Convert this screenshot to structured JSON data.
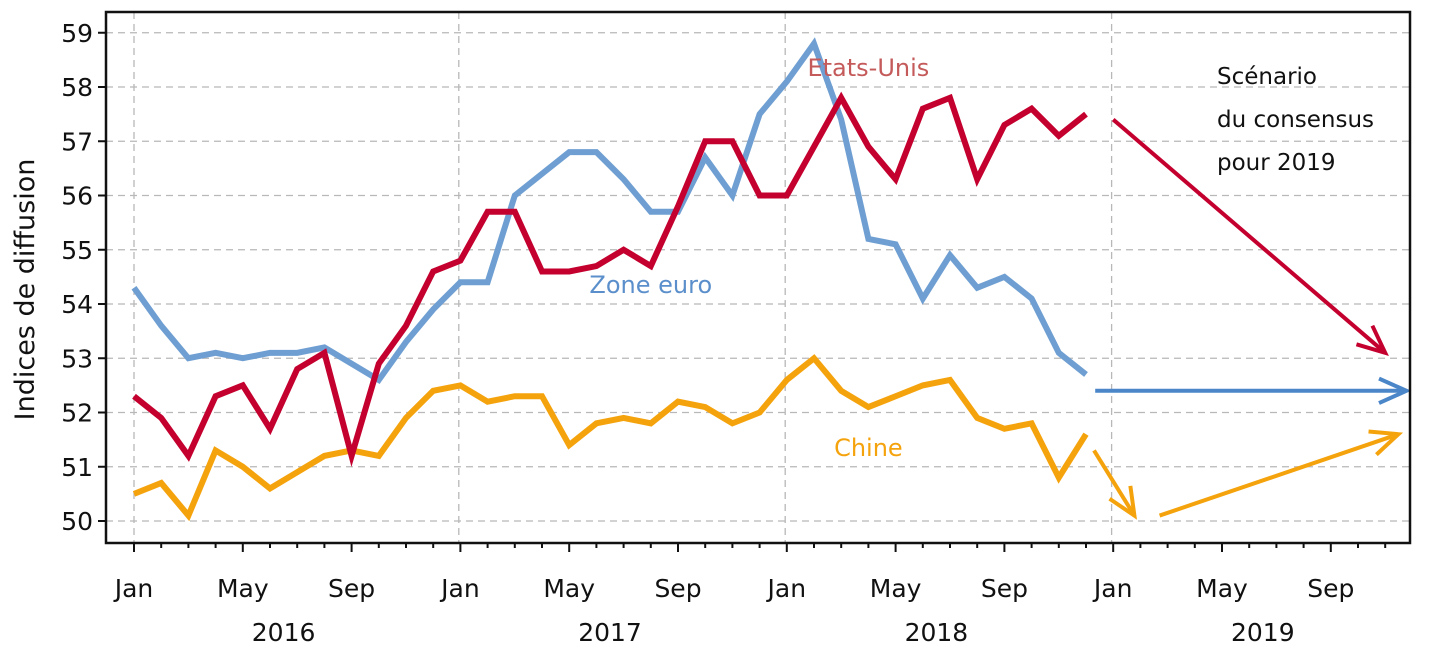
{
  "chart_data": {
    "type": "line",
    "title": "",
    "xlabel": "",
    "ylabel": "Indices de diffusion",
    "ylim": [
      50,
      59
    ],
    "yticks": [
      50,
      51,
      52,
      53,
      54,
      55,
      56,
      57,
      58,
      59
    ],
    "grid": true,
    "xticks": [
      {
        "label": "Jan",
        "date": "2016-01"
      },
      {
        "label": "May",
        "date": "2016-05"
      },
      {
        "label": "Sep",
        "date": "2016-09"
      },
      {
        "label": "Jan",
        "date": "2017-01"
      },
      {
        "label": "May",
        "date": "2017-05"
      },
      {
        "label": "Sep",
        "date": "2017-09"
      },
      {
        "label": "Jan",
        "date": "2018-01"
      },
      {
        "label": "May",
        "date": "2018-05"
      },
      {
        "label": "Sep",
        "date": "2018-09"
      },
      {
        "label": "Jan",
        "date": "2019-01"
      },
      {
        "label": "May",
        "date": "2019-05"
      },
      {
        "label": "Sep",
        "date": "2019-09"
      }
    ],
    "years": [
      {
        "label": "2016",
        "date": "2016-07"
      },
      {
        "label": "2017",
        "date": "2017-07"
      },
      {
        "label": "2018",
        "date": "2018-07"
      },
      {
        "label": "2019",
        "date": "2019-07"
      }
    ],
    "x": [
      "2016-01",
      "2016-02",
      "2016-03",
      "2016-04",
      "2016-05",
      "2016-06",
      "2016-07",
      "2016-08",
      "2016-09",
      "2016-10",
      "2016-11",
      "2016-12",
      "2017-01",
      "2017-02",
      "2017-03",
      "2017-04",
      "2017-05",
      "2017-06",
      "2017-07",
      "2017-08",
      "2017-09",
      "2017-10",
      "2017-11",
      "2017-12",
      "2018-01",
      "2018-02",
      "2018-03",
      "2018-04",
      "2018-05",
      "2018-06",
      "2018-07",
      "2018-08",
      "2018-09",
      "2018-10",
      "2018-11",
      "2018-12"
    ],
    "series": [
      {
        "name": "Etats-Unis",
        "color": "#c4002f",
        "values": [
          52.3,
          51.9,
          51.2,
          52.3,
          52.5,
          51.7,
          52.8,
          53.1,
          51.2,
          52.9,
          53.6,
          54.6,
          54.8,
          55.7,
          55.7,
          54.6,
          54.6,
          54.7,
          55.0,
          54.7,
          55.8,
          57.0,
          57.0,
          56.0,
          56.0,
          56.9,
          57.8,
          56.9,
          56.3,
          57.6,
          57.8,
          56.3,
          57.3,
          57.6,
          57.1,
          57.5
        ]
      },
      {
        "name": "Zone euro",
        "color": "#6f9fd2",
        "values": [
          54.3,
          53.6,
          53.0,
          53.1,
          53.0,
          53.1,
          53.1,
          53.2,
          52.9,
          52.6,
          53.3,
          53.9,
          54.4,
          54.4,
          56.0,
          56.4,
          56.8,
          56.8,
          56.3,
          55.7,
          55.7,
          56.7,
          56.0,
          57.5,
          58.1,
          58.8,
          57.4,
          55.2,
          55.1,
          54.1,
          54.9,
          54.3,
          54.5,
          54.1,
          53.1,
          52.7
        ]
      },
      {
        "name": "Chine",
        "color": "#f5a30d",
        "values": [
          50.5,
          50.7,
          50.1,
          51.3,
          51.0,
          50.6,
          50.9,
          51.2,
          51.3,
          51.2,
          51.9,
          52.4,
          52.5,
          52.2,
          52.3,
          52.3,
          51.4,
          51.8,
          51.9,
          51.8,
          52.2,
          52.1,
          51.8,
          52.0,
          52.6,
          53.0,
          52.4,
          52.1,
          52.3,
          52.5,
          52.6,
          51.9,
          51.7,
          51.8,
          50.8,
          51.6
        ]
      }
    ],
    "scenario": {
      "label_lines": [
        "Scénario",
        "du consensus",
        "pour 2019"
      ],
      "arrows": [
        {
          "series": "Etats-Unis",
          "color": "#c4002f",
          "from": {
            "date": "2019-01",
            "value": 57.4
          },
          "to": {
            "date": "2019-11",
            "value": 53.1
          }
        },
        {
          "series": "Zone euro",
          "color": "#4a86c8",
          "from": {
            "date": "2019-01",
            "value": 52.4
          },
          "to": {
            "date": "2019-12",
            "value": 52.4
          }
        },
        {
          "series": "Chine",
          "color": "#f5a30d",
          "from": {
            "date": "2018-12",
            "value": 51.3
          },
          "to": {
            "date": "2019-02",
            "value": 50.1
          }
        },
        {
          "series": "Chine",
          "color": "#f5a30d",
          "from": {
            "date": "2019-03",
            "value": 50.1
          },
          "to": {
            "date": "2019-12",
            "value": 51.6
          }
        }
      ]
    },
    "series_labels": [
      {
        "text": "Etats-Unis",
        "color": "#c45a5a",
        "date": "2018-04",
        "value": 58.2
      },
      {
        "text": "Zone euro",
        "color": "#5b8fcb",
        "date": "2017-08",
        "value": 54.2
      },
      {
        "text": "Chine",
        "color": "#f5a30d",
        "date": "2018-04",
        "value": 51.2
      }
    ]
  }
}
